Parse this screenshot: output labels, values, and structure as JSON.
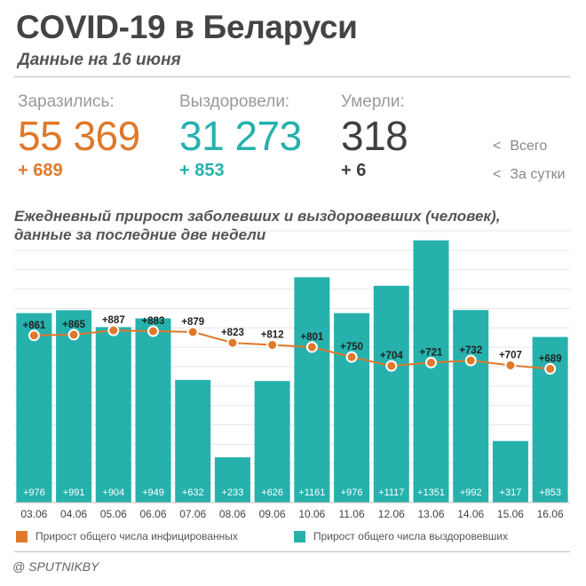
{
  "header": {
    "title": "COVID-19 в Беларуси",
    "subtitle": "Данные на 16 июня"
  },
  "stats": {
    "infected": {
      "label": "Заразились:",
      "total": "55 369",
      "daily": "+ 689",
      "color": "#e0782a"
    },
    "recovered": {
      "label": "Выздоровели:",
      "total": "31 273",
      "daily": "+ 853",
      "color": "#26b1ad"
    },
    "deaths": {
      "label": "Умерли:",
      "total": "318",
      "daily": "+ 6",
      "color": "#3f3f3f"
    }
  },
  "side_legend": {
    "total": {
      "arrow": "<",
      "label": "Всего"
    },
    "daily": {
      "arrow": "<",
      "label": "За сутки"
    }
  },
  "chart_title": {
    "line1": "Ежедневный прирост заболевших и выздоровевших (человек),",
    "line2": "данные за последние две недели"
  },
  "chart_data": {
    "type": "bar",
    "categories": [
      "03.06",
      "04.06",
      "05.06",
      "06.06",
      "07.06",
      "08.06",
      "09.06",
      "10.06",
      "11.06",
      "12.06",
      "13.06",
      "14.06",
      "15.06",
      "16.06"
    ],
    "series": [
      {
        "name": "Прирост общего числа выздоровевших",
        "type": "bar",
        "color": "#26b1ad",
        "values": [
          976,
          991,
          904,
          949,
          632,
          233,
          626,
          1161,
          976,
          1117,
          1351,
          992,
          317,
          853
        ],
        "labels": [
          "+976",
          "+991",
          "+904",
          "+949",
          "+632",
          "+233",
          "+626",
          "+1161",
          "+976",
          "+1117",
          "+1351",
          "+992",
          "+317",
          "+853"
        ]
      },
      {
        "name": "Прирост общего числа инфицированных",
        "type": "line",
        "color": "#e0782a",
        "values": [
          861,
          865,
          887,
          883,
          879,
          823,
          812,
          801,
          750,
          704,
          721,
          732,
          707,
          689
        ],
        "labels": [
          "+861",
          "+865",
          "+887",
          "+883",
          "+879",
          "+823",
          "+812",
          "+801",
          "+750",
          "+704",
          "+721",
          "+732",
          "+707",
          "+689"
        ]
      }
    ],
    "ylim": [
      0,
      1400
    ],
    "grid": true
  },
  "legend": {
    "infected": {
      "label": "Прирост общего числа инфицированных",
      "color": "#e0782a"
    },
    "recovered": {
      "label": "Прирост общего числа выздоровевших",
      "color": "#26b1ad"
    }
  },
  "source": "@ SPUTNIKBY"
}
